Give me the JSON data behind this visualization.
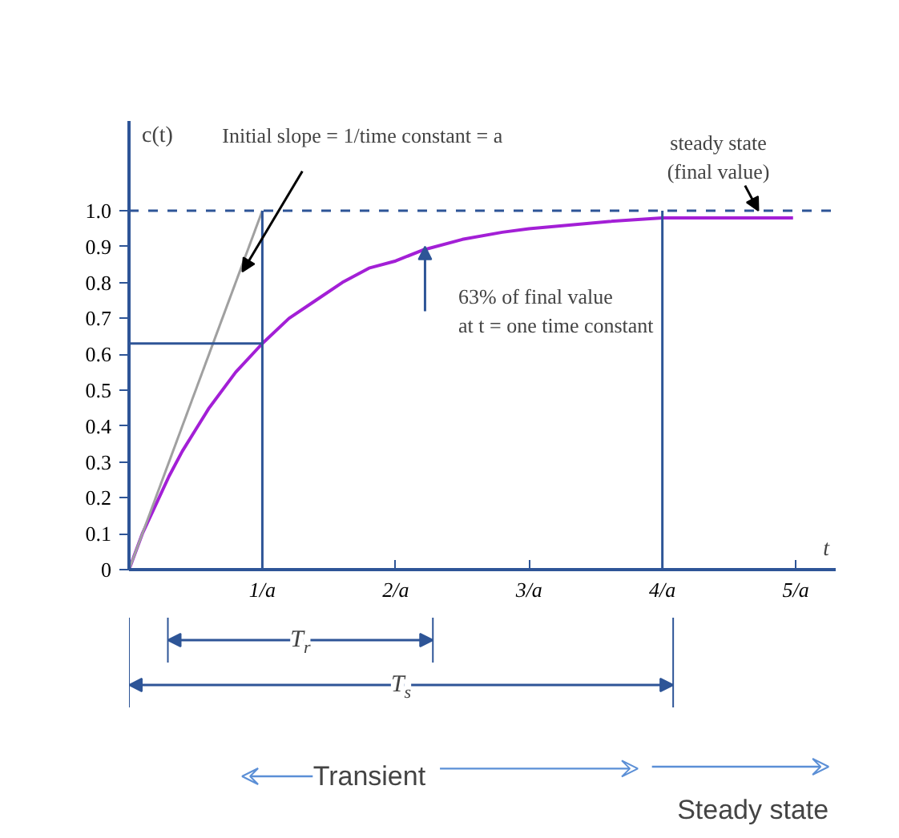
{
  "chart_data": {
    "type": "line",
    "xlabel": "t",
    "ylabel": "c(t)",
    "xlim": [
      0,
      5.3
    ],
    "ylim": [
      0,
      1.25
    ],
    "xticks": [
      {
        "value": 1,
        "label": "1/a"
      },
      {
        "value": 2,
        "label": "2/a"
      },
      {
        "value": 3,
        "label": "3/a"
      },
      {
        "value": 4,
        "label": "4/a"
      },
      {
        "value": 5,
        "label": "5/a"
      }
    ],
    "yticks": [
      0,
      0.1,
      0.2,
      0.3,
      0.4,
      0.5,
      0.6,
      0.7,
      0.8,
      0.9,
      {
        "value": 1,
        "label": "1.0"
      }
    ],
    "grid": false,
    "marker": "none",
    "line_style": "solid",
    "series": [
      {
        "color": "#a31fd6",
        "x": [
          0,
          0.1,
          0.2,
          0.3,
          0.4,
          0.5,
          0.6,
          0.8,
          1,
          1.2,
          1.4,
          1.6,
          1.8,
          2,
          2.2,
          2.5,
          2.8,
          3,
          3.3,
          3.6,
          4,
          4.5,
          4.98
        ],
        "values": [
          0,
          0.1,
          0.18,
          0.26,
          0.33,
          0.39,
          0.45,
          0.55,
          0.63,
          0.7,
          0.75,
          0.8,
          0.84,
          0.86,
          0.89,
          0.92,
          0.94,
          0.95,
          0.96,
          0.97,
          0.98,
          0.98,
          0.98
        ]
      },
      {
        "color": "#a0a0a0",
        "x": [
          0,
          1
        ],
        "values": [
          0,
          1
        ]
      },
      {
        "color": "#2e5597",
        "x": [
          0,
          1
        ],
        "values": [
          0.63,
          0.63
        ]
      }
    ],
    "ref_lines": [
      {
        "axis": "y",
        "value": 1,
        "color": "#2e5597",
        "line_style": "dashed"
      },
      {
        "axis": "x",
        "value": 1,
        "color": "#2e5597"
      },
      {
        "axis": "x",
        "value": 4,
        "color": "#2e5597"
      }
    ],
    "annotations": [
      {
        "text": "Initial slope = 1/time constant = a",
        "x": 0.85,
        "y": 0.83
      },
      {
        "text": "steady state\n(final value)",
        "x": 4.72,
        "y": 1.0
      },
      {
        "text": "63% of final value\nat t = one time constant",
        "x": 2.22,
        "y": 0.9
      },
      "T$_{r}$",
      "T$_{s}$",
      "Transient",
      "Steady state"
    ]
  }
}
